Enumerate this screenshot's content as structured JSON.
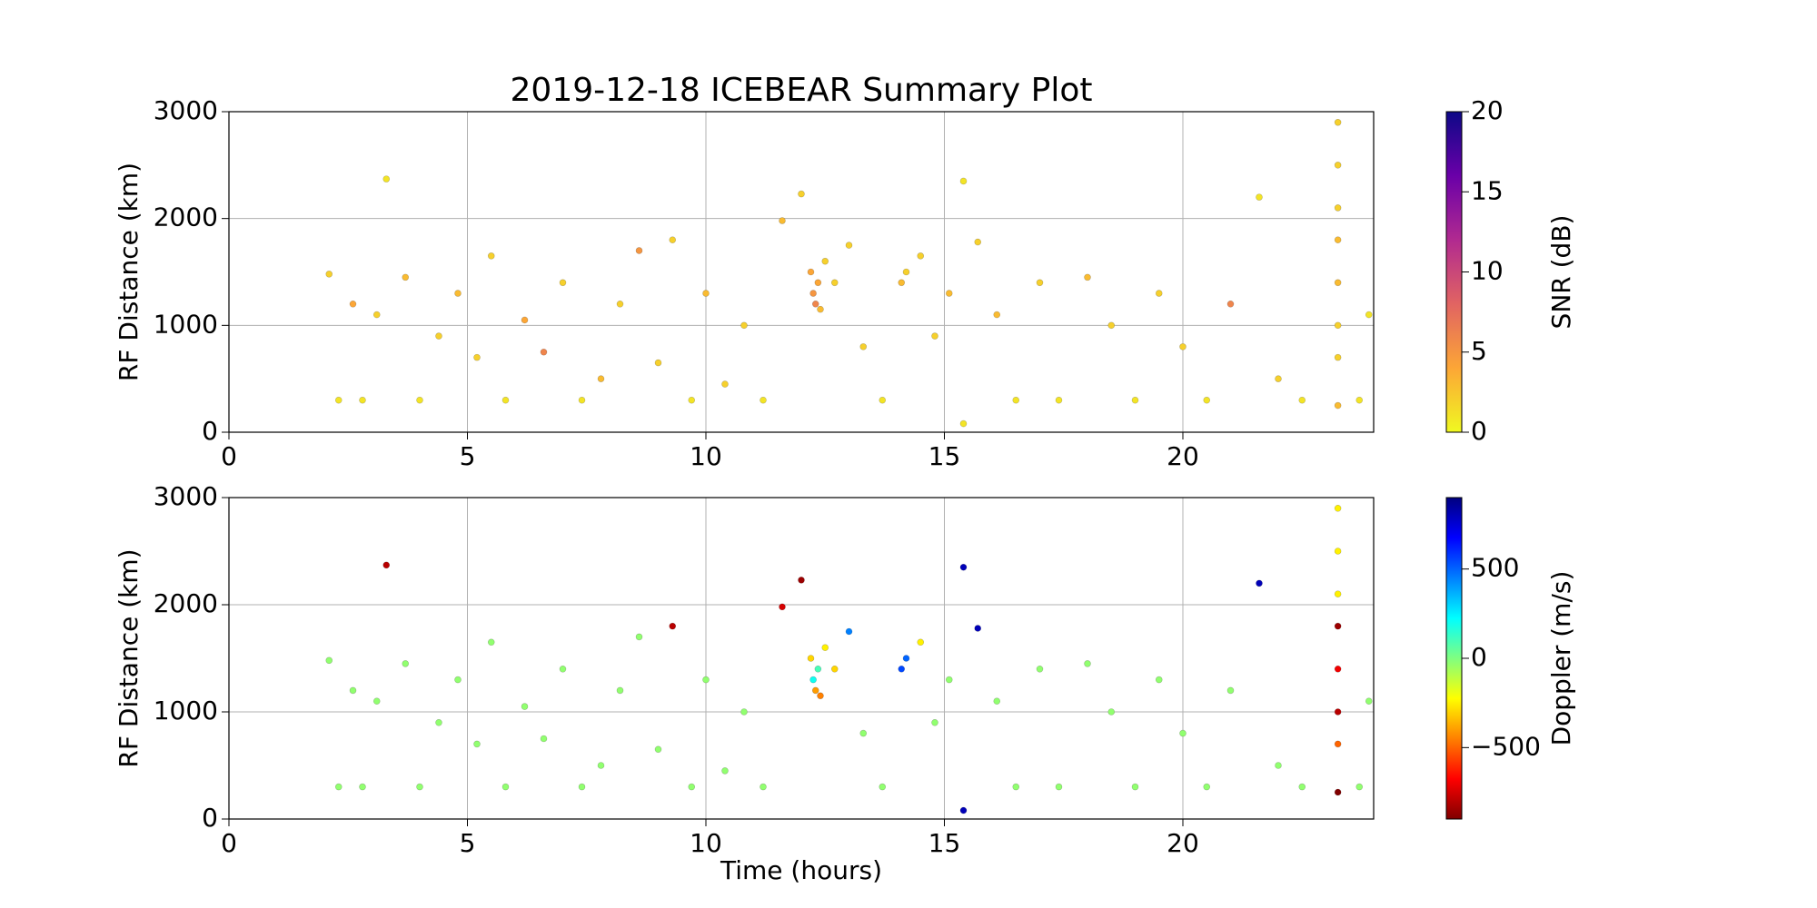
{
  "chart_data": [
    {
      "type": "scatter",
      "title": "2019-12-18 ICEBEAR Summary Plot",
      "ylabel": "RF Distance (km)",
      "xlim": [
        0,
        24
      ],
      "xticks": [
        0,
        5,
        10,
        15,
        20
      ],
      "ylim": [
        0,
        3000
      ],
      "yticks": [
        0,
        1000,
        2000,
        3000
      ],
      "grid": true,
      "x": [
        2.1,
        2.3,
        2.6,
        2.8,
        3.1,
        3.3,
        3.7,
        4.0,
        4.4,
        4.8,
        5.2,
        5.5,
        5.8,
        6.2,
        6.6,
        7.0,
        7.4,
        7.8,
        8.2,
        8.6,
        9.0,
        9.3,
        9.7,
        10.0,
        10.4,
        10.8,
        11.2,
        11.6,
        12.0,
        12.2,
        12.25,
        12.3,
        12.35,
        12.4,
        12.5,
        12.7,
        13.0,
        13.3,
        13.7,
        14.1,
        14.2,
        14.5,
        14.8,
        15.1,
        15.4,
        15.4,
        15.7,
        16.1,
        16.5,
        17.0,
        17.4,
        18.0,
        18.5,
        19.0,
        19.5,
        20.0,
        20.5,
        21.0,
        21.6,
        22.0,
        22.5,
        23.25,
        23.25,
        23.25,
        23.25,
        23.25,
        23.25,
        23.25,
        23.25,
        23.7,
        23.9
      ],
      "y": [
        1480,
        300,
        1200,
        300,
        1100,
        2370,
        1450,
        300,
        900,
        1300,
        700,
        1650,
        300,
        1050,
        750,
        1400,
        300,
        500,
        1200,
        1700,
        650,
        1800,
        300,
        1300,
        450,
        1000,
        300,
        1980,
        2230,
        1500,
        1300,
        1200,
        1400,
        1150,
        1600,
        1400,
        1750,
        800,
        300,
        1400,
        1500,
        1650,
        900,
        1300,
        2350,
        80,
        1780,
        1100,
        300,
        1400,
        300,
        1450,
        1000,
        300,
        1300,
        800,
        300,
        1200,
        2200,
        500,
        300,
        2900,
        2500,
        2100,
        1800,
        1400,
        1000,
        700,
        250,
        300,
        1100
      ],
      "color_values": [
        2,
        1,
        4,
        1,
        2,
        1,
        3,
        1,
        2,
        3,
        2,
        2,
        1,
        4,
        6,
        2,
        1,
        3,
        2,
        5,
        2,
        2,
        1,
        3,
        2,
        2,
        1,
        3,
        2,
        4,
        5,
        6,
        4,
        3,
        2,
        2,
        2,
        2,
        1,
        3,
        2,
        2,
        2,
        3,
        1,
        1,
        2,
        3,
        1,
        2,
        1,
        3,
        2,
        1,
        2,
        2,
        1,
        6,
        1,
        2,
        1,
        2,
        2,
        2,
        3,
        3,
        2,
        2,
        3,
        1,
        1
      ],
      "colorbar": {
        "label": "SNR (dB)",
        "lim": [
          0,
          20
        ],
        "ticks": [
          0,
          5,
          10,
          15,
          20
        ],
        "colors": [
          "#f0f921",
          "#fca636",
          "#e16462",
          "#b12a90",
          "#6a00a8",
          "#0d0887"
        ]
      }
    },
    {
      "type": "scatter",
      "ylabel": "RF Distance (km)",
      "xlabel": "Time (hours)",
      "xlim": [
        0,
        24
      ],
      "xticks": [
        0,
        5,
        10,
        15,
        20
      ],
      "ylim": [
        0,
        3000
      ],
      "yticks": [
        0,
        1000,
        2000,
        3000
      ],
      "grid": true,
      "x": [
        2.1,
        2.3,
        2.6,
        2.8,
        3.1,
        3.3,
        3.7,
        4.0,
        4.4,
        4.8,
        5.2,
        5.5,
        5.8,
        6.2,
        6.6,
        7.0,
        7.4,
        7.8,
        8.2,
        8.6,
        9.0,
        9.3,
        9.7,
        10.0,
        10.4,
        10.8,
        11.2,
        11.6,
        12.0,
        12.2,
        12.25,
        12.3,
        12.35,
        12.4,
        12.5,
        12.7,
        13.0,
        13.3,
        13.7,
        14.1,
        14.2,
        14.5,
        14.8,
        15.1,
        15.4,
        15.4,
        15.7,
        16.1,
        16.5,
        17.0,
        17.4,
        18.0,
        18.5,
        19.0,
        19.5,
        20.0,
        20.5,
        21.0,
        21.6,
        22.0,
        22.5,
        23.25,
        23.25,
        23.25,
        23.25,
        23.25,
        23.25,
        23.25,
        23.25,
        23.7,
        23.9
      ],
      "y": [
        1480,
        300,
        1200,
        300,
        1100,
        2370,
        1450,
        300,
        900,
        1300,
        700,
        1650,
        300,
        1050,
        750,
        1400,
        300,
        500,
        1200,
        1700,
        650,
        1800,
        300,
        1300,
        450,
        1000,
        300,
        1980,
        2230,
        1500,
        1300,
        1200,
        1400,
        1150,
        1600,
        1400,
        1750,
        800,
        300,
        1400,
        1500,
        1650,
        900,
        1300,
        2350,
        80,
        1780,
        1100,
        300,
        1400,
        300,
        1450,
        1000,
        300,
        1300,
        800,
        300,
        1200,
        2200,
        500,
        300,
        2900,
        2500,
        2100,
        1800,
        1400,
        1000,
        700,
        250,
        300,
        1100
      ],
      "color_values": [
        -30,
        -30,
        -30,
        -30,
        -30,
        -800,
        -30,
        -30,
        -30,
        -30,
        -30,
        -30,
        -30,
        -30,
        -30,
        -30,
        -30,
        -30,
        -30,
        -30,
        -30,
        -800,
        -30,
        -30,
        -30,
        -30,
        -30,
        -750,
        -850,
        -300,
        200,
        -400,
        100,
        -450,
        -250,
        -300,
        450,
        -30,
        -30,
        550,
        500,
        -250,
        -30,
        -30,
        800,
        800,
        800,
        -30,
        -30,
        -30,
        -30,
        -30,
        -30,
        -30,
        -30,
        -30,
        -30,
        -30,
        800,
        -30,
        -30,
        -250,
        -250,
        -250,
        -850,
        -700,
        -800,
        -500,
        -900,
        -30,
        -30
      ],
      "colorbar": {
        "label": "Doppler (m/s)",
        "lim": [
          -900,
          900
        ],
        "ticks": [
          {
            "value": -500,
            "label": "−500"
          },
          0,
          500
        ],
        "colors": [
          "#800000",
          "#ff0000",
          "#ff8000",
          "#ffff00",
          "#80ff80",
          "#00ffff",
          "#0080ff",
          "#0000ff",
          "#000080"
        ]
      }
    }
  ]
}
